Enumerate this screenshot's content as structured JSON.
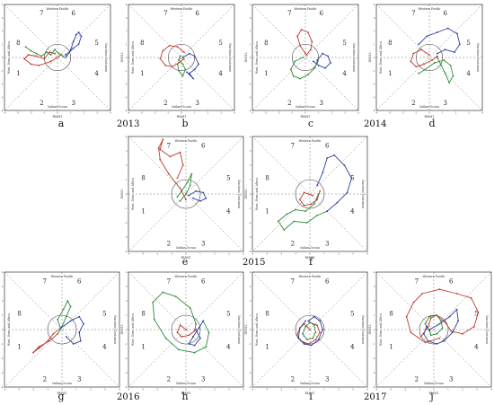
{
  "figure": {
    "year_labels": [
      {
        "id": "y2013",
        "text": "2013"
      },
      {
        "id": "y2014",
        "text": "2014"
      },
      {
        "id": "y2015",
        "text": "2015"
      },
      {
        "id": "y2016",
        "text": "2016"
      },
      {
        "id": "y2017",
        "text": "2017"
      }
    ],
    "colors": {
      "series1": "#c0392b",
      "series2": "#2e8b3a",
      "series3": "#2c3e9e"
    }
  },
  "chart_data": [
    {
      "type": "line",
      "panel": "a",
      "title": "",
      "xlabel": "RMM1",
      "ylabel": "RMM2",
      "xlim": [
        -4,
        4
      ],
      "ylim": [
        -4,
        4
      ],
      "grid": false,
      "phases": [
        "1",
        "2",
        "3",
        "4",
        "5",
        "6",
        "7",
        "8"
      ],
      "regions": {
        "top": "Western Pacific",
        "bottom": "Indian Ocean",
        "left": "West. Hem. and Africa",
        "right": "Maritime Continent"
      },
      "series": [
        {
          "color": "#c0392b",
          "x": [
            0.3,
            -0.5,
            -1.4,
            -2.0,
            -2.5,
            -2.2,
            -1.6,
            -1.0,
            -0.6,
            -0.2
          ],
          "y": [
            0.2,
            -0.3,
            -0.6,
            -0.5,
            -0.1,
            0.2,
            0.1,
            -0.1,
            0.4,
            0.3
          ]
        },
        {
          "color": "#2e8b3a",
          "x": [
            -2.4,
            -2.0,
            -1.6,
            -1.2,
            -0.8,
            -0.5,
            -0.2,
            0.1,
            0.4,
            0.6
          ],
          "y": [
            0.8,
            0.5,
            0.3,
            0.1,
            0.4,
            0.2,
            0.6,
            0.3,
            0.1,
            0.0
          ]
        },
        {
          "color": "#2c3e9e",
          "x": [
            0.7,
            1.0,
            1.2,
            1.4,
            1.6,
            1.8,
            1.6,
            1.2,
            0.9,
            0.6
          ],
          "y": [
            0.1,
            0.6,
            1.2,
            1.7,
            1.9,
            1.6,
            1.0,
            0.7,
            0.4,
            0.2
          ]
        }
      ]
    },
    {
      "type": "line",
      "panel": "b",
      "title": "",
      "xlabel": "RMM1",
      "ylabel": "RMM2",
      "xlim": [
        -4,
        4
      ],
      "ylim": [
        -4,
        4
      ],
      "grid": false,
      "phases": [
        "1",
        "2",
        "3",
        "4",
        "5",
        "6",
        "7",
        "8"
      ],
      "regions": {
        "top": "Western Pacific",
        "bottom": "Indian Ocean",
        "left": "West. Hem. and Africa",
        "right": "Maritime Continent"
      },
      "series": [
        {
          "color": "#c0392b",
          "x": [
            0.2,
            -0.3,
            -0.9,
            -1.4,
            -1.6,
            -1.2,
            -0.7,
            -0.2,
            0.2
          ],
          "y": [
            0.4,
            0.8,
            0.9,
            0.5,
            -0.1,
            -0.6,
            -0.7,
            -0.4,
            -0.1
          ]
        },
        {
          "color": "#2e8b3a",
          "x": [
            -0.3,
            -0.2,
            0.1,
            0.3,
            0.1,
            -0.2,
            -0.1
          ],
          "y": [
            -0.5,
            -1.0,
            -1.4,
            -0.9,
            -0.5,
            -0.2,
            0.1
          ]
        },
        {
          "color": "#2c3e9e",
          "x": [
            0.1,
            0.6,
            1.0,
            1.3,
            1.0,
            0.6,
            0.9,
            0.4
          ],
          "y": [
            0.0,
            0.3,
            0.1,
            -0.5,
            -0.9,
            -1.2,
            -1.6,
            -1.1
          ]
        }
      ]
    },
    {
      "type": "line",
      "panel": "c",
      "title": "",
      "xlabel": "RMM1",
      "ylabel": "RMM2",
      "xlim": [
        -4,
        4
      ],
      "ylim": [
        -4,
        4
      ],
      "grid": false,
      "phases": [
        "1",
        "2",
        "3",
        "4",
        "5",
        "6",
        "7",
        "8"
      ],
      "regions": {
        "top": "Western Pacific",
        "bottom": "Indian Ocean",
        "left": "West. Hem. and Africa",
        "right": "Maritime Continent"
      },
      "series": [
        {
          "color": "#c0392b",
          "x": [
            0.0,
            -0.4,
            -0.6,
            -0.3,
            0.2,
            0.5,
            0.4,
            0.1
          ],
          "y": [
            0.3,
            0.9,
            1.6,
            2.1,
            1.9,
            1.2,
            0.6,
            0.2
          ]
        },
        {
          "color": "#2e8b3a",
          "x": [
            -0.2,
            -0.8,
            -1.1,
            -0.9,
            -0.4,
            0.2,
            0.7,
            0.9
          ],
          "y": [
            0.0,
            -0.3,
            -0.9,
            -1.4,
            -1.6,
            -1.3,
            -0.8,
            -0.3
          ]
        },
        {
          "color": "#2c3e9e",
          "x": [
            0.9,
            1.3,
            1.7,
            1.9,
            1.5,
            1.0,
            0.6
          ],
          "y": [
            -0.2,
            0.3,
            0.1,
            -0.4,
            -0.8,
            -0.6,
            -0.3
          ]
        }
      ]
    },
    {
      "type": "line",
      "panel": "d",
      "title": "",
      "xlabel": "RMM1",
      "ylabel": "RMM2",
      "xlim": [
        -4,
        4
      ],
      "ylim": [
        -4,
        4
      ],
      "grid": false,
      "phases": [
        "1",
        "2",
        "3",
        "4",
        "5",
        "6",
        "7",
        "8"
      ],
      "regions": {
        "top": "Western Pacific",
        "bottom": "Indian Ocean",
        "left": "West. Hem. and Africa",
        "right": "Maritime Continent"
      },
      "series": [
        {
          "color": "#c0392b",
          "x": [
            0.0,
            -0.6,
            -1.2,
            -1.4,
            -1.0,
            -0.4,
            0.2,
            0.6
          ],
          "y": [
            0.2,
            0.6,
            0.3,
            -0.3,
            -0.7,
            -0.5,
            -0.2,
            0.1
          ]
        },
        {
          "color": "#2e8b3a",
          "x": [
            0.6,
            0.9,
            1.2,
            1.5,
            1.8,
            1.6,
            1.1,
            0.4,
            -0.3,
            -0.8
          ],
          "y": [
            0.0,
            -0.6,
            -1.2,
            -1.9,
            -1.4,
            -0.6,
            -0.2,
            -0.4,
            -0.9,
            -1.2
          ]
        },
        {
          "color": "#2c3e9e",
          "x": [
            -0.8,
            -0.2,
            0.6,
            1.4,
            2.1,
            2.3,
            1.9,
            1.2,
            0.6
          ],
          "y": [
            1.0,
            1.6,
            1.9,
            2.2,
            1.8,
            1.0,
            0.4,
            0.6,
            0.3
          ]
        }
      ]
    },
    {
      "type": "line",
      "panel": "e",
      "title": "",
      "xlabel": "RMM1",
      "ylabel": "RMM2",
      "xlim": [
        -4,
        4
      ],
      "ylim": [
        -4,
        4
      ],
      "grid": false,
      "phases": [
        "1",
        "2",
        "3",
        "4",
        "5",
        "6",
        "7",
        "8"
      ],
      "regions": {
        "top": "Western Pacific",
        "bottom": "Indian Ocean",
        "left": "West. Hem. and Africa",
        "right": "Maritime Continent"
      },
      "series": [
        {
          "color": "#c0392b",
          "x": [
            0.0,
            -0.4,
            -1.2,
            -1.8,
            -1.9,
            -1.6,
            -1.8,
            -1.1,
            -0.4,
            -0.2,
            -0.6
          ],
          "y": [
            -0.4,
            0.4,
            1.4,
            2.4,
            3.2,
            3.8,
            3.1,
            2.6,
            2.9,
            2.0,
            1.1
          ]
        },
        {
          "color": "#2e8b3a",
          "x": [
            -0.6,
            -0.3,
            0.1,
            0.4,
            0.3,
            0.0,
            -0.4
          ],
          "y": [
            -0.2,
            0.2,
            0.8,
            1.4,
            0.6,
            0.0,
            -0.5
          ]
        },
        {
          "color": "#2c3e9e",
          "x": [
            0.2,
            0.7,
            1.2,
            1.4,
            1.0,
            0.5
          ],
          "y": [
            -0.1,
            0.2,
            0.1,
            -0.3,
            -0.5,
            -0.3
          ]
        }
      ]
    },
    {
      "type": "line",
      "panel": "f",
      "title": "",
      "xlabel": "RMM1",
      "ylabel": "RMM2",
      "xlim": [
        -4,
        4
      ],
      "ylim": [
        -4,
        4
      ],
      "grid": false,
      "phases": [
        "1",
        "2",
        "3",
        "4",
        "5",
        "6",
        "7",
        "8"
      ],
      "regions": {
        "top": "Western Pacific",
        "bottom": "Indian Ocean",
        "left": "West. Hem. and Africa",
        "right": "Maritime Continent"
      },
      "series": [
        {
          "color": "#c0392b",
          "x": [
            0.2,
            -0.4,
            -0.7,
            -0.4,
            0.1,
            0.5,
            0.7
          ],
          "y": [
            -0.1,
            0.1,
            -0.4,
            -0.8,
            -0.7,
            -0.4,
            0.2
          ]
        },
        {
          "color": "#2e8b3a",
          "x": [
            0.6,
            0.3,
            -0.3,
            -1.0,
            -1.6,
            -2.2,
            -1.8,
            -1.1,
            -0.2,
            0.5,
            1.2
          ],
          "y": [
            0.0,
            -0.7,
            -1.2,
            -1.1,
            -1.4,
            -1.9,
            -2.5,
            -1.9,
            -2.0,
            -1.5,
            -1.2
          ]
        },
        {
          "color": "#2c3e9e",
          "x": [
            1.2,
            1.9,
            2.6,
            2.9,
            2.4,
            1.7,
            1.2,
            0.9,
            0.5
          ],
          "y": [
            -1.2,
            -0.6,
            0.1,
            1.1,
            2.0,
            2.7,
            2.5,
            1.5,
            0.6
          ]
        }
      ]
    },
    {
      "type": "line",
      "panel": "g",
      "title": "",
      "xlabel": "RMM1",
      "ylabel": "RMM2",
      "xlim": [
        -4,
        4
      ],
      "ylim": [
        -4,
        4
      ],
      "grid": false,
      "phases": [
        "1",
        "2",
        "3",
        "4",
        "5",
        "6",
        "7",
        "8"
      ],
      "regions": {
        "top": "Western Pacific",
        "bottom": "Indian Ocean",
        "left": "West. Hem. and Africa",
        "right": "Maritime Continent"
      },
      "series": [
        {
          "color": "#c0392b",
          "x": [
            0.0,
            -0.6,
            -1.1,
            -1.6,
            -2.0,
            -1.6,
            -0.9,
            -0.3
          ],
          "y": [
            0.2,
            -0.3,
            -0.9,
            -1.3,
            -1.6,
            -1.2,
            -0.8,
            -0.3
          ]
        },
        {
          "color": "#2e8b3a",
          "x": [
            -0.3,
            0.0,
            0.3,
            0.6,
            0.4,
            0.1,
            -0.3,
            -0.1
          ],
          "y": [
            -0.3,
            0.2,
            0.9,
            1.6,
            2.0,
            1.4,
            0.7,
            0.1
          ]
        },
        {
          "color": "#2c3e9e",
          "x": [
            -0.1,
            0.6,
            1.2,
            1.5,
            1.2,
            1.3,
            0.8,
            0.3
          ],
          "y": [
            0.1,
            0.6,
            0.9,
            0.4,
            -0.2,
            -0.8,
            -1.0,
            -0.5
          ]
        }
      ]
    },
    {
      "type": "line",
      "panel": "h",
      "title": "",
      "xlabel": "RMM1",
      "ylabel": "RMM2",
      "xlim": [
        -4,
        4
      ],
      "ylim": [
        -4,
        4
      ],
      "grid": false,
      "phases": [
        "1",
        "2",
        "3",
        "4",
        "5",
        "6",
        "7",
        "8"
      ],
      "regions": {
        "top": "Western Pacific",
        "bottom": "Indian Ocean",
        "left": "West. Hem. and Africa",
        "right": "Maritime Continent"
      },
      "series": [
        {
          "color": "#c0392b",
          "x": [
            0.0,
            -0.4,
            -0.6,
            -0.3,
            0.2,
            0.6,
            0.7
          ],
          "y": [
            0.0,
            0.3,
            -0.2,
            -0.5,
            -0.4,
            -0.1,
            0.4
          ]
        },
        {
          "color": "#2e8b3a",
          "x": [
            0.7,
            0.3,
            -0.7,
            -1.6,
            -2.3,
            -2.2,
            -1.4,
            -0.5,
            0.6,
            1.4,
            1.6,
            1.2
          ],
          "y": [
            0.4,
            1.5,
            2.3,
            2.6,
            1.9,
            0.7,
            -0.6,
            -1.4,
            -1.6,
            -1.2,
            -0.2,
            0.6
          ]
        },
        {
          "color": "#2c3e9e",
          "x": [
            1.2,
            0.9,
            0.5,
            0.2,
            0.6,
            1.0,
            0.7
          ],
          "y": [
            0.6,
            0.1,
            -0.5,
            -1.0,
            -1.1,
            -0.6,
            0.0
          ]
        }
      ]
    },
    {
      "type": "line",
      "panel": "i",
      "title": "",
      "xlabel": "RMM1",
      "ylabel": "RMM2",
      "xlim": [
        -4,
        4
      ],
      "ylim": [
        -4,
        4
      ],
      "grid": false,
      "phases": [
        "1",
        "2",
        "3",
        "4",
        "5",
        "6",
        "7",
        "8"
      ],
      "regions": {
        "top": "Western Pacific",
        "bottom": "Indian Ocean",
        "left": "West. Hem. and Africa",
        "right": "Maritime Continent"
      },
      "series": [
        {
          "color": "#c0392b",
          "x": [
            0.0,
            -0.4,
            -0.7,
            -0.9,
            -0.6,
            -0.1,
            0.4,
            0.7,
            0.5,
            0.0
          ],
          "y": [
            0.0,
            0.4,
            0.1,
            -0.4,
            -0.8,
            -1.0,
            -0.7,
            -0.2,
            0.3,
            0.5
          ]
        },
        {
          "color": "#2e8b3a",
          "x": [
            0.0,
            -0.3,
            -0.5,
            -0.2,
            0.2,
            0.4,
            0.3,
            -0.1
          ],
          "y": [
            0.5,
            0.2,
            -0.3,
            -0.7,
            -0.6,
            -0.2,
            0.3,
            0.6
          ]
        },
        {
          "color": "#2c3e9e",
          "x": [
            -0.1,
            0.3,
            0.7,
            0.9,
            0.6,
            0.1,
            -0.4,
            -0.8,
            -0.7,
            -0.3
          ],
          "y": [
            0.6,
            0.9,
            0.6,
            0.0,
            -0.7,
            -1.1,
            -1.0,
            -0.6,
            0.1,
            0.6
          ]
        }
      ]
    },
    {
      "type": "line",
      "panel": "j",
      "title": "",
      "xlabel": "RMM1",
      "ylabel": "RMM2",
      "xlim": [
        -4,
        4
      ],
      "ylim": [
        -4,
        4
      ],
      "grid": false,
      "phases": [
        "1",
        "2",
        "3",
        "4",
        "5",
        "6",
        "7",
        "8"
      ],
      "regions": {
        "top": "Western Pacific",
        "bottom": "Indian Ocean",
        "left": "West. Hem. and Africa",
        "right": "Maritime Continent"
      },
      "series": [
        {
          "color": "#c0392b",
          "x": [
            0.4,
            -0.6,
            -1.6,
            -1.9,
            -1.4,
            -0.8,
            0.4,
            1.6,
            2.6,
            3.1,
            2.8,
            2.0,
            1.2,
            0.8,
            0.2,
            -0.2,
            -0.4,
            -0.9
          ],
          "y": [
            -0.6,
            -0.9,
            -0.2,
            0.9,
            1.9,
            2.5,
            2.8,
            2.5,
            2.2,
            1.2,
            0.2,
            -0.3,
            -0.1,
            0.5,
            1.0,
            0.8,
            0.2,
            -0.5
          ]
        },
        {
          "color": "#2e8b3a",
          "x": [
            -0.3,
            -0.6,
            -0.3,
            0.2,
            0.5,
            0.6,
            0.2,
            -0.2,
            -0.3
          ],
          "y": [
            -0.1,
            0.4,
            0.9,
            1.0,
            0.6,
            0.1,
            -0.3,
            -0.4,
            0.0
          ]
        },
        {
          "color": "#2c3e9e",
          "x": [
            -0.3,
            0.4,
            1.1,
            1.6,
            1.7,
            1.3,
            0.7,
            0.2,
            -0.4,
            -0.7,
            -0.5
          ],
          "y": [
            0.0,
            0.4,
            0.9,
            1.4,
            0.6,
            -0.2,
            -0.8,
            -1.0,
            -0.8,
            -0.3,
            0.2
          ]
        }
      ]
    }
  ]
}
